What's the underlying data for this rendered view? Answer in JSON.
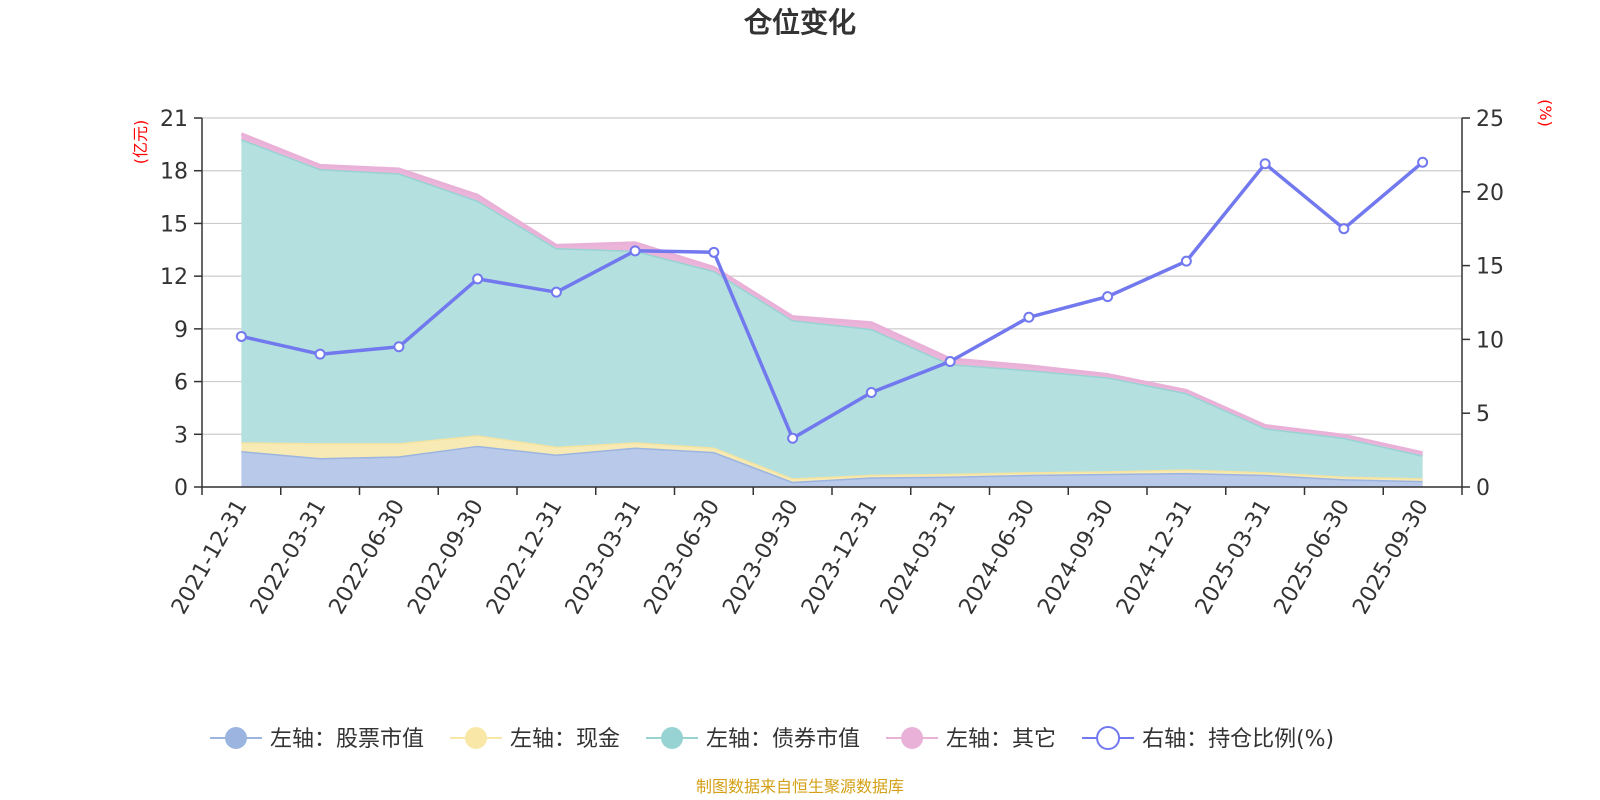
{
  "chart_data": {
    "type": "area",
    "title": "仓位变化",
    "left_axis": {
      "unit": "(亿元)",
      "ticks": [
        0,
        3,
        6,
        9,
        12,
        15,
        18,
        21
      ],
      "ylim": [
        0,
        21
      ]
    },
    "right_axis": {
      "unit": "(%)",
      "ticks": [
        0,
        5,
        10,
        15,
        20,
        25
      ],
      "ylim": [
        0,
        25
      ]
    },
    "categories": [
      "2021-12-31",
      "2022-03-31",
      "2022-06-30",
      "2022-09-30",
      "2022-12-31",
      "2023-03-31",
      "2023-06-30",
      "2023-09-30",
      "2023-12-31",
      "2024-03-31",
      "2024-06-30",
      "2024-09-30",
      "2024-12-31",
      "2025-03-31",
      "2025-06-30",
      "2025-09-30"
    ],
    "stacked_series": [
      {
        "name": "左轴：股票市值",
        "axis": "left",
        "color": "#9bb4e0",
        "fill": "#b8c9ea",
        "values": [
          2.05,
          1.65,
          1.75,
          2.35,
          1.85,
          2.25,
          2.0,
          0.3,
          0.55,
          0.6,
          0.7,
          0.75,
          0.8,
          0.7,
          0.45,
          0.35
        ]
      },
      {
        "name": "左轴：现金",
        "axis": "left",
        "color": "#f5e3a0",
        "fill": "#f8eab4",
        "values": [
          0.5,
          0.85,
          0.75,
          0.6,
          0.45,
          0.3,
          0.25,
          0.2,
          0.15,
          0.15,
          0.15,
          0.15,
          0.2,
          0.15,
          0.15,
          0.15
        ]
      },
      {
        "name": "左轴：债券市值",
        "axis": "left",
        "color": "#98d3d3",
        "fill": "#b4e0e0",
        "values": [
          17.25,
          15.6,
          15.35,
          13.35,
          11.3,
          10.9,
          10.05,
          9.0,
          8.3,
          6.25,
          5.8,
          5.35,
          4.35,
          2.5,
          2.2,
          1.3
        ]
      },
      {
        "name": "左轴：其它",
        "axis": "left",
        "color": "#e9b1d8",
        "fill": "#ebb5da",
        "values": [
          0.3,
          0.2,
          0.25,
          0.3,
          0.15,
          0.45,
          0.2,
          0.2,
          0.35,
          0.3,
          0.25,
          0.15,
          0.15,
          0.15,
          0.15,
          0.15
        ]
      }
    ],
    "line_series": {
      "name": "右轴：持仓比例(%)",
      "axis": "right",
      "color": "#7278ee",
      "values": [
        10.2,
        9.0,
        9.5,
        14.1,
        13.2,
        16.0,
        15.9,
        3.3,
        6.4,
        8.5,
        11.5,
        12.9,
        15.3,
        21.9,
        17.5,
        22.0
      ]
    }
  },
  "legend": [
    {
      "label": "左轴：股票市值",
      "color": "#9bb4e0"
    },
    {
      "label": "左轴：现金",
      "color": "#f8e7a6"
    },
    {
      "label": "左轴：债券市值",
      "color": "#98d3d3"
    },
    {
      "label": "左轴：其它",
      "color": "#e9b1d8"
    },
    {
      "label": "右轴：持仓比例(%)",
      "color": "#7278ee"
    }
  ],
  "source": "制图数据来自恒生聚源数据库",
  "colors": {
    "unit": "#ff0000",
    "source": "#d4a017",
    "grid": "#cccccc",
    "axis": "#333333"
  }
}
